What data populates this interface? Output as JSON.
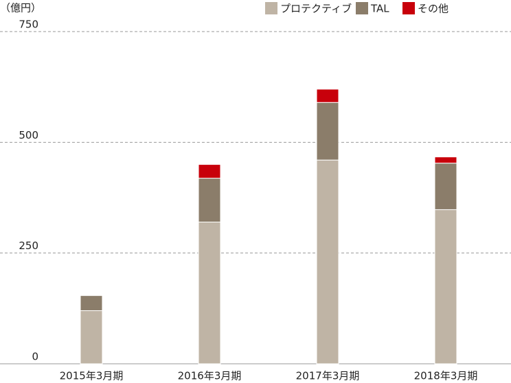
{
  "chart_data": {
    "type": "stacked-bar",
    "y_label": "（億円）",
    "categories": [
      "2015年3月期",
      "2016年3月期",
      "2017年3月期",
      "2018年3月期"
    ],
    "series": [
      {
        "name": "プロテクティブ",
        "color": "#bfb4a5",
        "values": [
          120,
          320,
          460,
          348
        ]
      },
      {
        "name": "TAL",
        "color": "#8b7d6a",
        "values": [
          34,
          99,
          130,
          105
        ]
      },
      {
        "name": "その他",
        "color": "#c8000b",
        "values": [
          0,
          31,
          30,
          14
        ]
      }
    ],
    "ylim": [
      0,
      750
    ],
    "yticks": [
      0,
      250,
      500,
      750
    ],
    "grid": true,
    "legend": "top-right"
  }
}
